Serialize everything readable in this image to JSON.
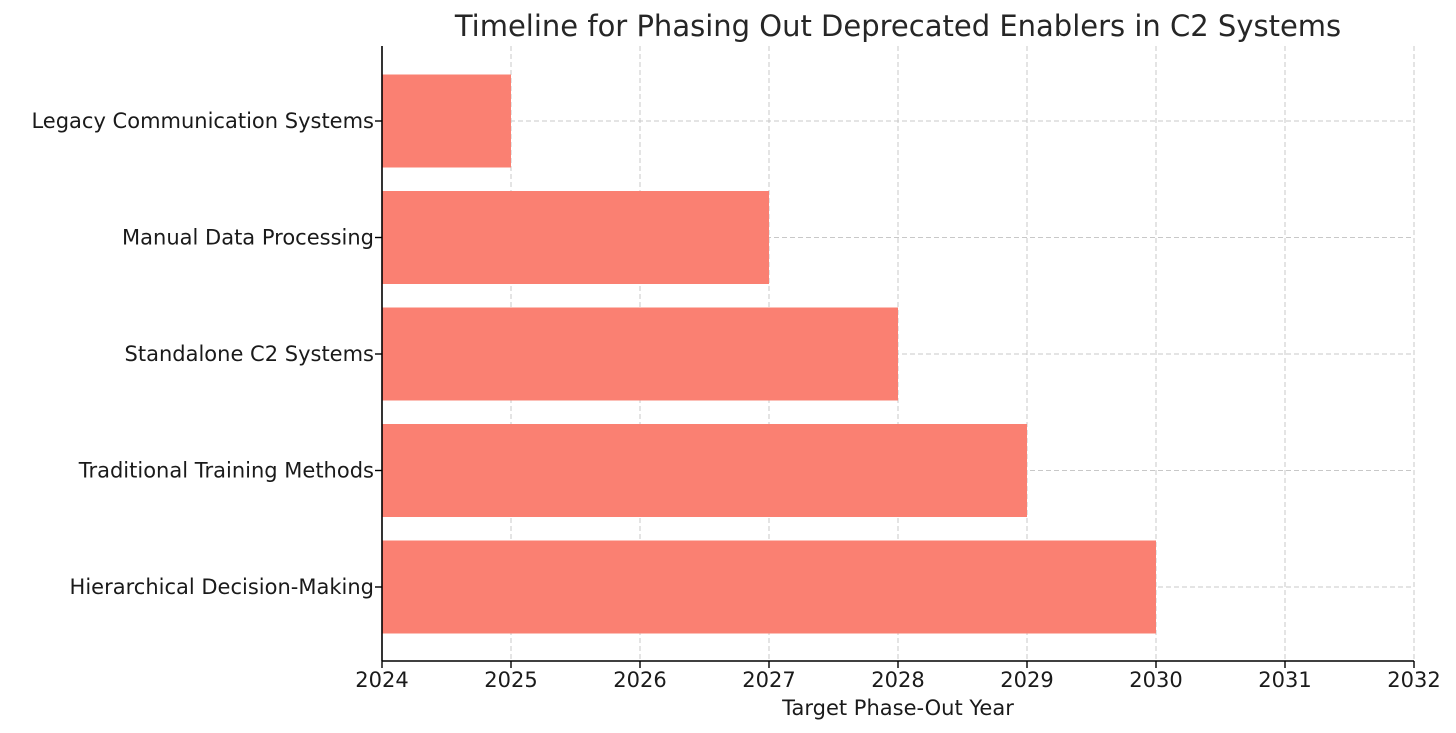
{
  "chart_data": {
    "type": "bar",
    "orientation": "horizontal",
    "title": "Timeline for Phasing Out Deprecated Enablers in C2 Systems",
    "xlabel": "Target Phase-Out Year",
    "ylabel": "",
    "xlim": [
      2024,
      2032
    ],
    "x_ticks": [
      "2024",
      "2025",
      "2026",
      "2027",
      "2028",
      "2029",
      "2030",
      "2031",
      "2032"
    ],
    "categories": [
      "Legacy Communication Systems",
      "Manual Data Processing",
      "Standalone C2 Systems",
      "Traditional Training Methods",
      "Hierarchical Decision-Making"
    ],
    "values": [
      2025,
      2027,
      2028,
      2029,
      2030
    ],
    "bar_base": 2024,
    "grid": true,
    "bar_color": "#fa8072"
  }
}
